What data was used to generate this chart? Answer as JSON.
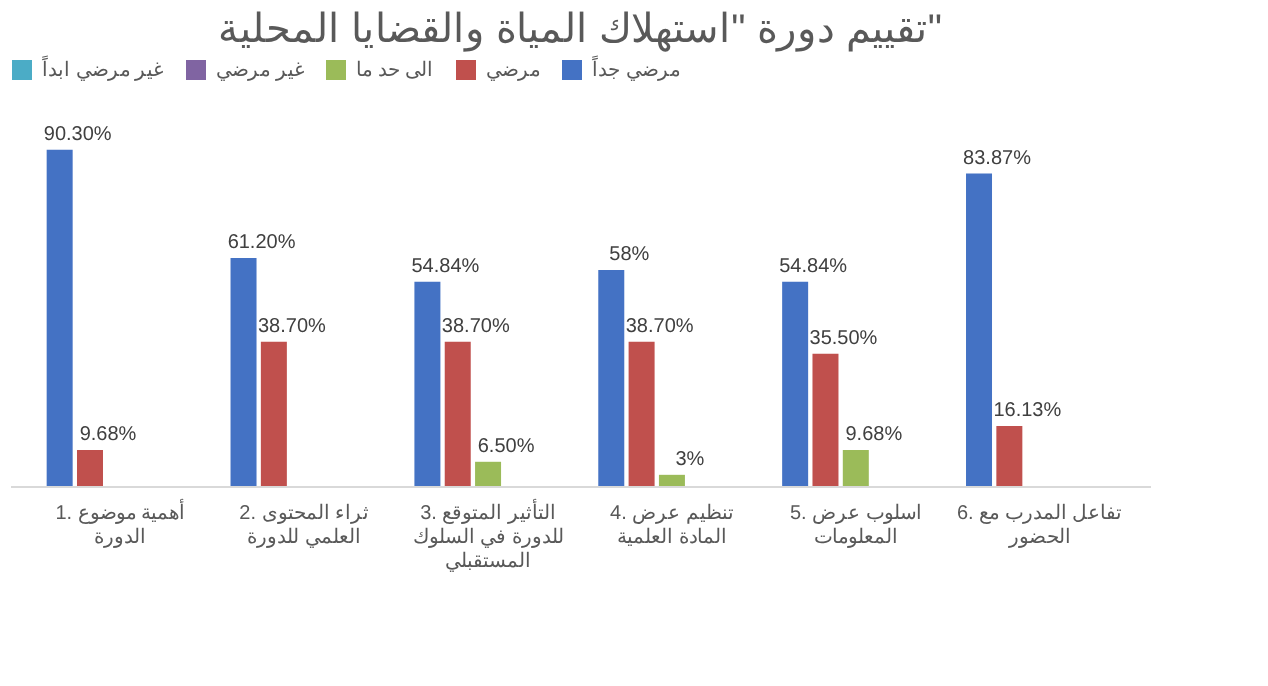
{
  "chart_data": {
    "type": "bar",
    "title": "تقييم دورة \"استهلاك المياة والقضايا المحلية\"",
    "categories": [
      "1. أهمية موضوع الدورة",
      "2. ثراء المحتوى العلمي للدورة",
      "3. التأثير المتوقع للدورة في السلوك المستقبلي",
      "4. تنظيم عرض المادة العلمية",
      "5. اسلوب عرض المعلومات",
      "6. تفاعل المدرب مع الحضور"
    ],
    "series": [
      {
        "name": "مرضي جداً",
        "color": "#4472c4",
        "values": [
          90.3,
          61.2,
          54.84,
          58,
          54.84,
          83.87
        ],
        "value_labels": [
          "90.30%",
          "61.20%",
          "54.84%",
          "58%",
          "54.84%",
          "83.87%"
        ]
      },
      {
        "name": "مرضي",
        "color": "#c0504d",
        "values": [
          9.68,
          38.7,
          38.7,
          38.7,
          35.5,
          16.13
        ],
        "value_labels": [
          "9.68%",
          "38.70%",
          "38.70%",
          "38.70%",
          "35.50%",
          "16.13%"
        ]
      },
      {
        "name": "الى حد ما",
        "color": "#9bbb59",
        "values": [
          null,
          null,
          6.5,
          3,
          9.68,
          null
        ],
        "value_labels": [
          null,
          null,
          "6.50%",
          "3%",
          "9.68%",
          null
        ]
      },
      {
        "name": "غير مرضي",
        "color": "#8064a2",
        "values": [
          null,
          null,
          null,
          null,
          null,
          null
        ]
      },
      {
        "name": "غير مرضي ابداً",
        "color": "#4bacc6",
        "values": [
          null,
          null,
          null,
          null,
          null,
          null
        ]
      }
    ],
    "legend": "top",
    "grid": false,
    "tick_labels": "x"
  }
}
